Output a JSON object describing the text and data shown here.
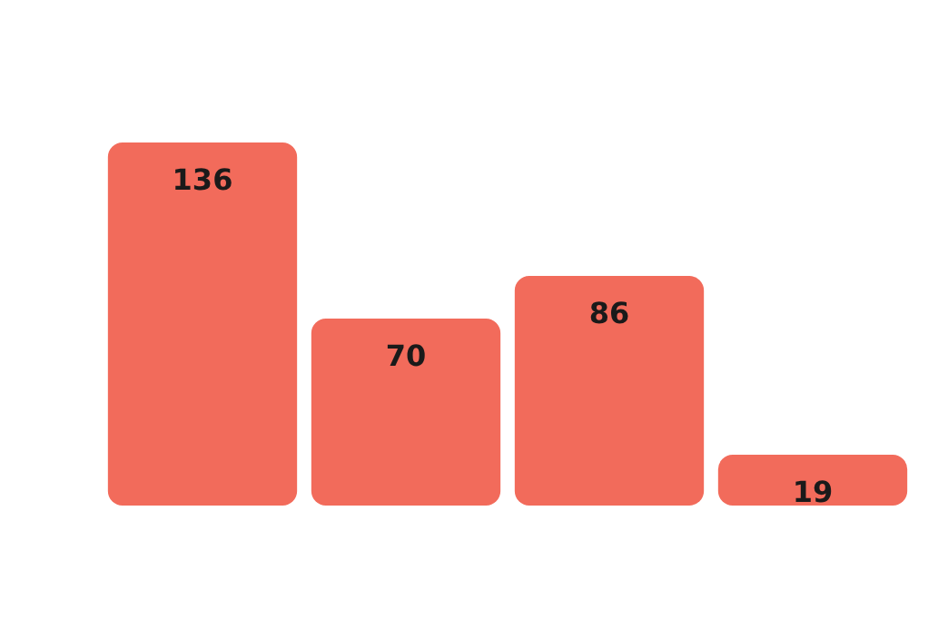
{
  "chart_data": {
    "type": "bar",
    "categories": [
      null,
      null,
      null,
      null
    ],
    "values": [
      136,
      70,
      86,
      19
    ],
    "color": "#f26b5b",
    "data_labels": true
  }
}
